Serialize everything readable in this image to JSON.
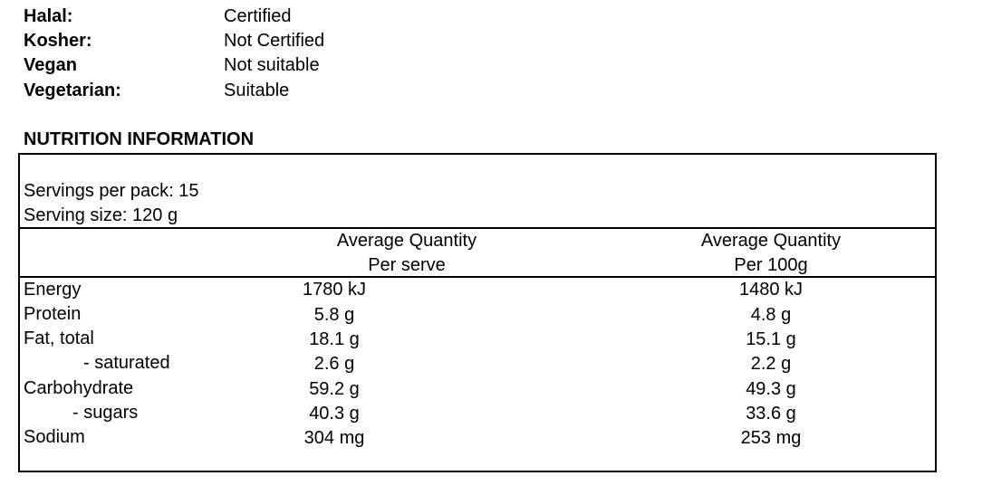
{
  "dietary": [
    {
      "label": "Halal:",
      "value": "Certified"
    },
    {
      "label": "Kosher:",
      "value": "Not Certified"
    },
    {
      "label": "Vegan",
      "value": "Not suitable"
    },
    {
      "label": "Vegetarian:",
      "value": "Suitable"
    }
  ],
  "nutrition": {
    "title": "NUTRITION INFORMATION",
    "servings_per_pack": "Servings per pack: 15",
    "serving_size": "Serving size: 120 g",
    "col1_header_line1": "Average Quantity",
    "col1_header_line2": "Per serve",
    "col2_header_line1": "Average Quantity",
    "col2_header_line2": "Per 100g",
    "rows": [
      {
        "name": "Energy",
        "per_serve": "1780 kJ",
        "per_100g": "1480 kJ"
      },
      {
        "name": "Protein",
        "per_serve": "5.8 g",
        "per_100g": "4.8 g"
      },
      {
        "name": "Fat, total",
        "per_serve": "18.1 g",
        "per_100g": "15.1 g"
      },
      {
        "name": "- saturated",
        "per_serve": "2.6 g",
        "per_100g": "2.2 g"
      },
      {
        "name": "Carbohydrate",
        "per_serve": "59.2 g",
        "per_100g": "49.3 g"
      },
      {
        "name": "- sugars",
        "per_serve": "40.3 g",
        "per_100g": "33.6 g"
      },
      {
        "name": "Sodium",
        "per_serve": "304 mg",
        "per_100g": "253 mg"
      }
    ]
  }
}
